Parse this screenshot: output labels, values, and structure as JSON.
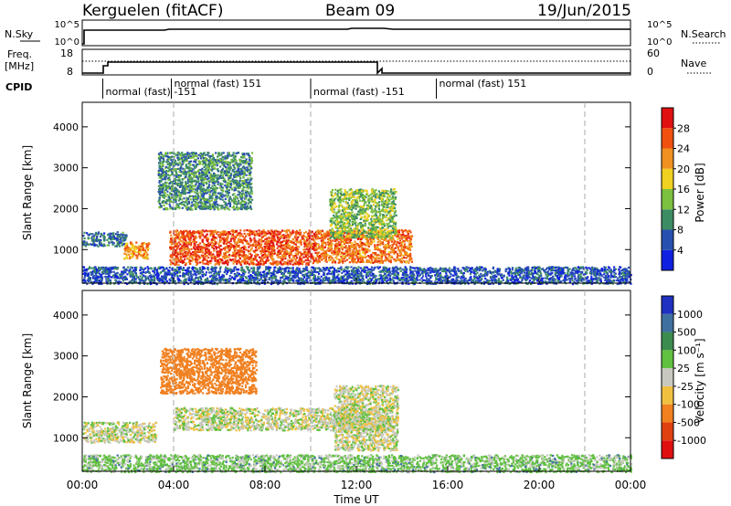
{
  "header": {
    "station": "Kerguelen (fitACF)",
    "beam": "Beam 09",
    "date": "19/Jun/2015"
  },
  "sky_panel": {
    "left_label": "N.Sky",
    "right_label": "N.Search",
    "left_ticks": [
      "10^5",
      "10^0"
    ],
    "right_ticks": [
      "10^5",
      "10^0"
    ]
  },
  "freq_panel": {
    "left_label_line1": "Freq.",
    "left_label_line2": "[MHz]",
    "right_label": "Nave",
    "left_ticks": [
      "18",
      "8"
    ],
    "right_ticks": [
      "60",
      "0"
    ]
  },
  "cpid": {
    "label": "CPID",
    "segments": [
      {
        "start_hour": 0.9,
        "label": "normal (fast) -151"
      },
      {
        "start_hour": 3.9,
        "label": "normal (fast) 151"
      },
      {
        "start_hour": 10.0,
        "label": "normal (fast) -151"
      },
      {
        "start_hour": 15.5,
        "label": "normal (fast) 151"
      }
    ]
  },
  "power_panel": {
    "ylabel": "Slant Range [km]",
    "yticks": [
      "1000",
      "2000",
      "3000",
      "4000"
    ],
    "colorbar_label": "Power [dB]",
    "colorbar_ticks": [
      "4",
      "8",
      "12",
      "16",
      "20",
      "24",
      "28"
    ],
    "colors": [
      "#1020e0",
      "#2850b0",
      "#3c8c64",
      "#7cc040",
      "#f0d020",
      "#f09020",
      "#f05010",
      "#e01010"
    ]
  },
  "velocity_panel": {
    "ylabel": "Slant Range [km]",
    "yticks": [
      "1000",
      "2000",
      "3000",
      "4000"
    ],
    "colorbar_label": "Velocity [m s⁻¹]",
    "colorbar_ticks": [
      "1000",
      "500",
      "100",
      "25",
      "-25",
      "-100",
      "-500",
      "-1000"
    ],
    "colors": [
      "#2030c0",
      "#4070a0",
      "#3c8c50",
      "#60c040",
      "#c8c8c0",
      "#f0c040",
      "#f08020",
      "#e04010",
      "#e01010"
    ]
  },
  "xaxis": {
    "label": "Time UT",
    "ticks": [
      "00:00",
      "04:00",
      "08:00",
      "12:00",
      "16:00",
      "20:00",
      "00:00"
    ]
  },
  "chart_data": {
    "type": "heatmap",
    "title": "Kerguelen (fitACF) Beam 09 19/Jun/2015",
    "xlabel": "Time UT",
    "ylabel": "Slant Range [km]",
    "x_range_hours": [
      0,
      24
    ],
    "y_range_km": [
      180,
      4600
    ],
    "dashed_time_markers_hours": [
      4,
      10,
      22
    ],
    "frequency_mhz": [
      {
        "from": 0,
        "to": 0.9,
        "value": 8
      },
      {
        "from": 0.9,
        "to": 1.1,
        "value": 10
      },
      {
        "from": 1.1,
        "to": 12.9,
        "value": 12
      },
      {
        "from": 12.9,
        "to": 24,
        "value": 8
      }
    ],
    "nave_reference": 18,
    "power_regions": [
      {
        "t0": 0.0,
        "t1": 1.9,
        "r0": 1100,
        "r1": 1450,
        "db": 8
      },
      {
        "t0": 1.8,
        "t1": 2.9,
        "r0": 800,
        "r1": 1200,
        "db": 22
      },
      {
        "t0": 3.8,
        "t1": 10.2,
        "r0": 650,
        "r1": 1500,
        "db": 26
      },
      {
        "t0": 10.2,
        "t1": 14.4,
        "r0": 700,
        "r1": 1500,
        "db": 24
      },
      {
        "t0": 3.3,
        "t1": 7.4,
        "r0": 2000,
        "r1": 3400,
        "db": 10
      },
      {
        "t0": 10.8,
        "t1": 13.7,
        "r0": 1300,
        "r1": 2500,
        "db": 14
      },
      {
        "t0": 0.0,
        "t1": 24.0,
        "r0": 180,
        "r1": 600,
        "db": 6
      }
    ],
    "velocity_regions": [
      {
        "t0": 0.0,
        "t1": 3.2,
        "r0": 900,
        "r1": 1400,
        "v": 0
      },
      {
        "t0": 4.0,
        "t1": 13.5,
        "r0": 1200,
        "r1": 1750,
        "v": 0
      },
      {
        "t0": 3.4,
        "t1": 7.6,
        "r0": 2100,
        "r1": 3200,
        "v": -300
      },
      {
        "t0": 11.0,
        "t1": 13.8,
        "r0": 700,
        "r1": 2300,
        "v": 0
      },
      {
        "t0": 0.0,
        "t1": 24.0,
        "r0": 180,
        "r1": 600,
        "v": 50
      }
    ]
  }
}
